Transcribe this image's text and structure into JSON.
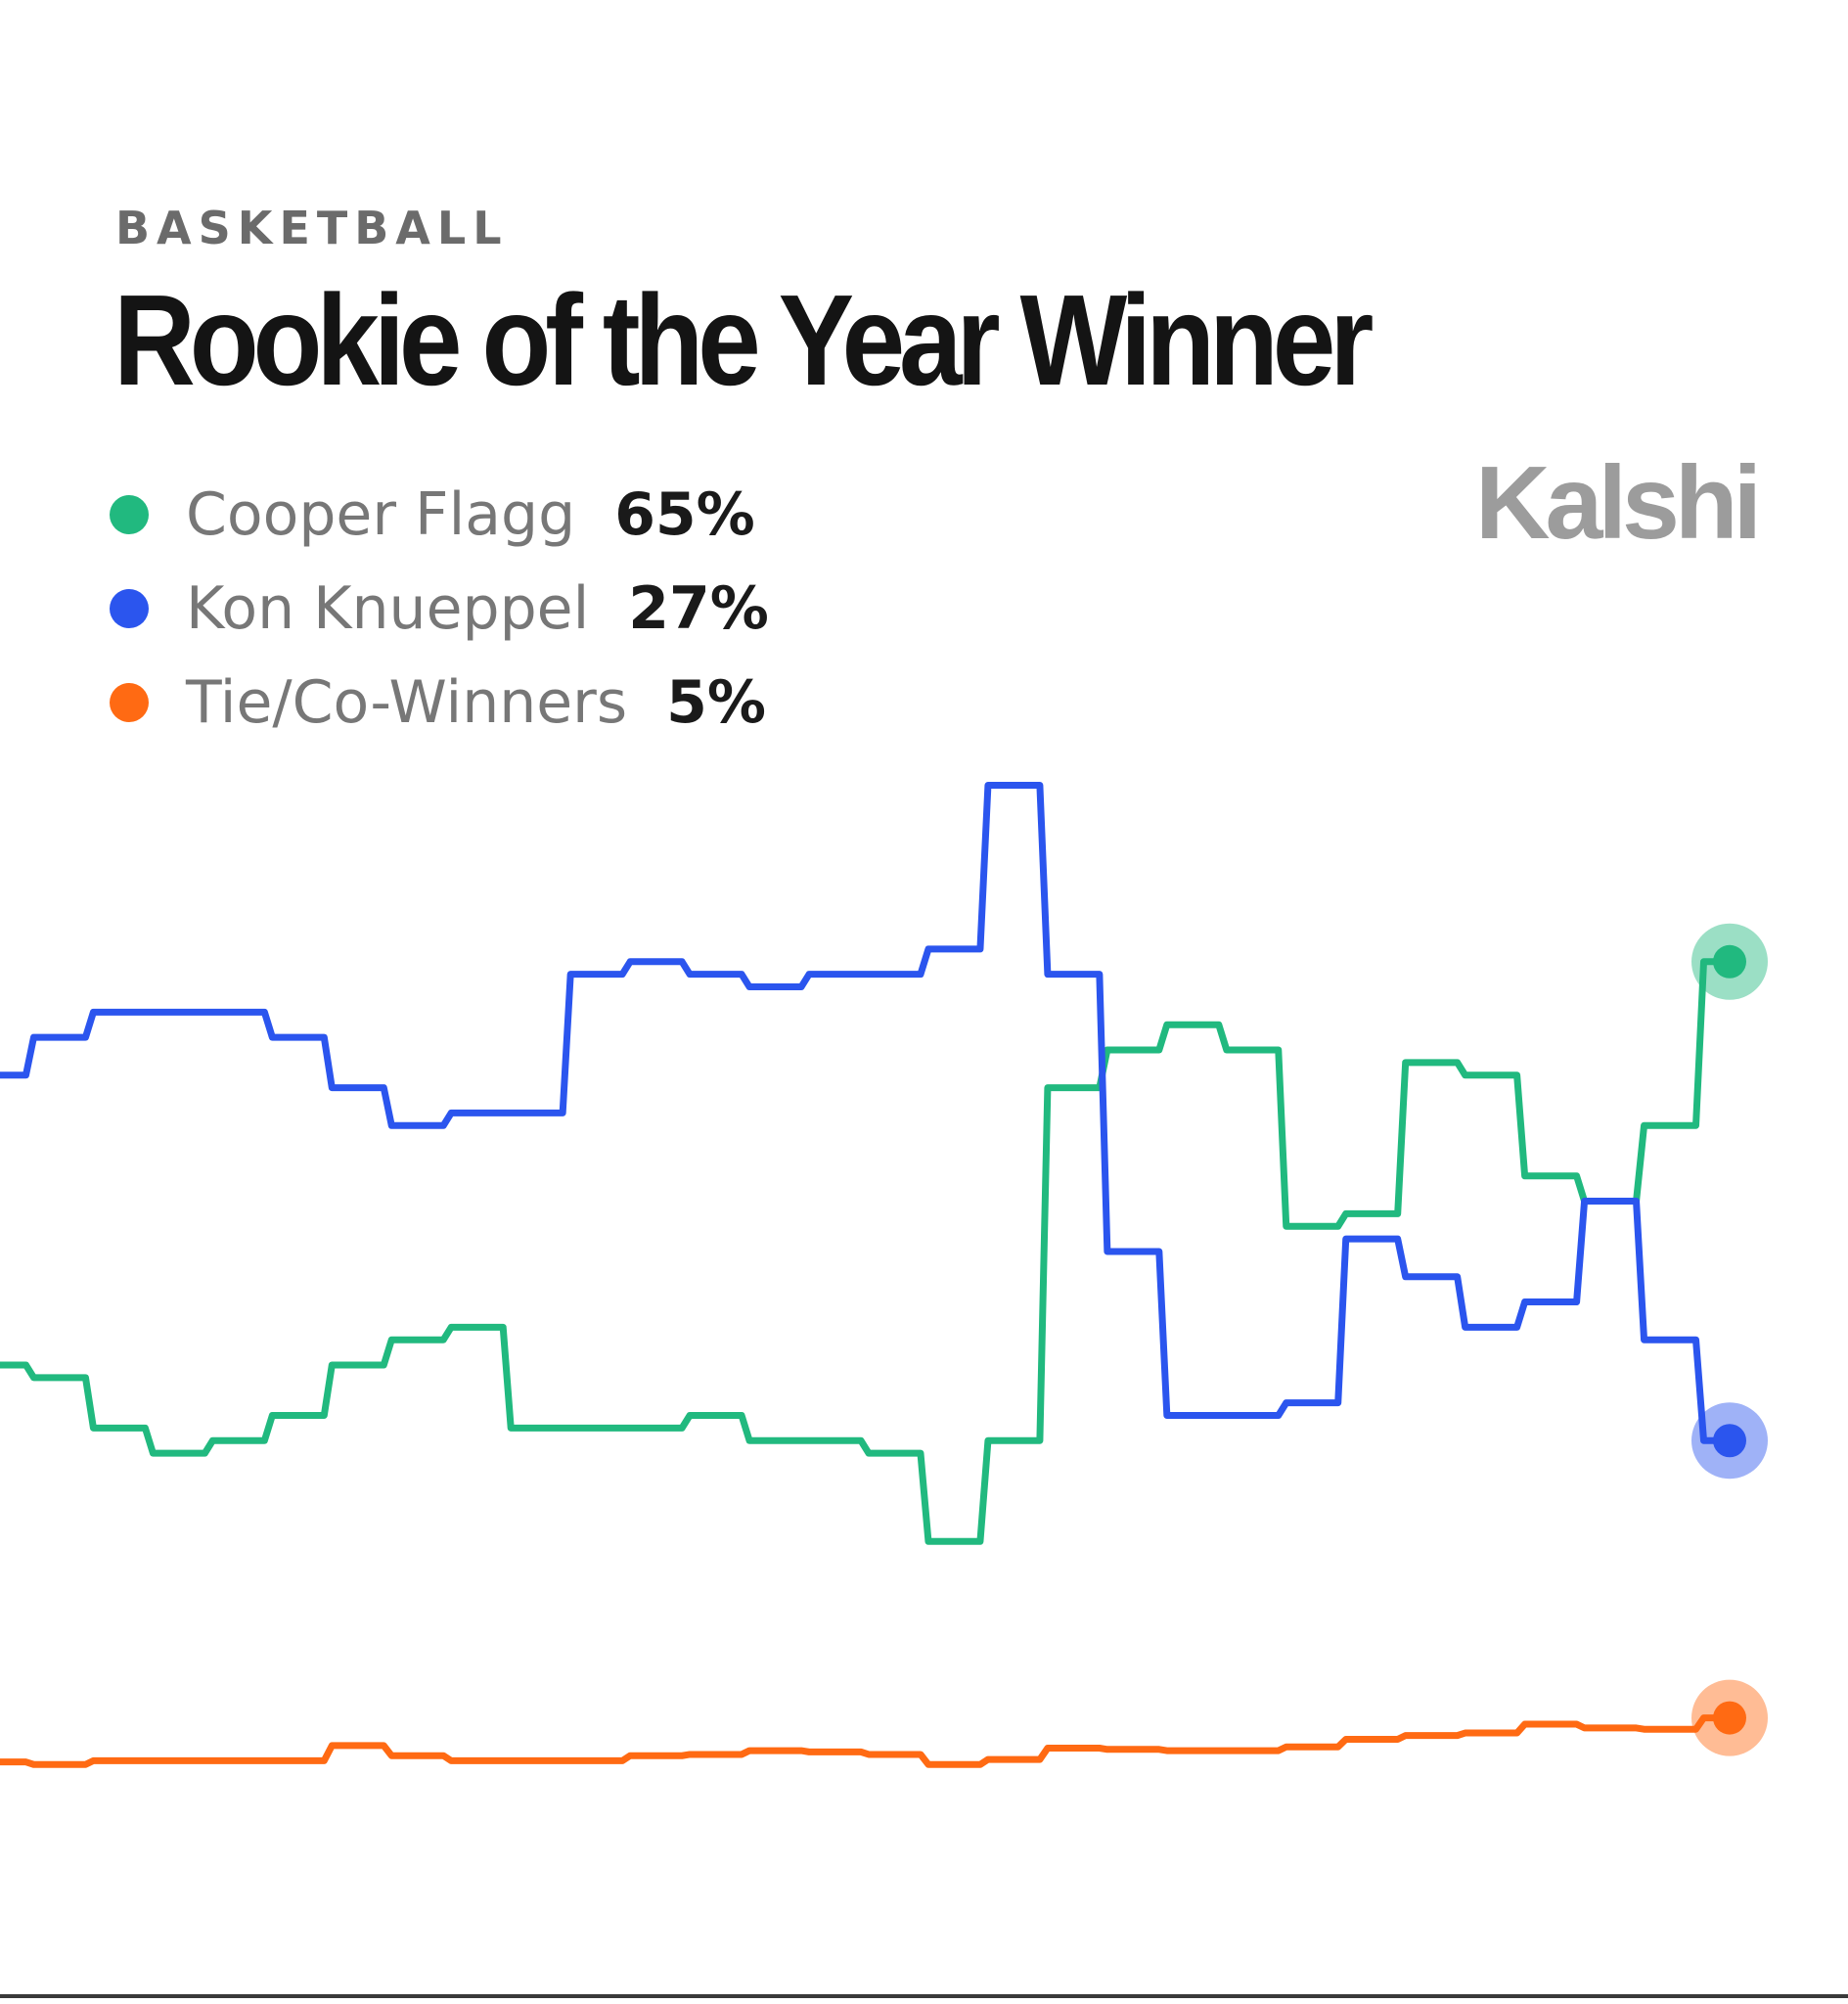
{
  "header": {
    "kicker": "BASKETBALL",
    "title": "Rookie of the Year Winner",
    "brand": "Kalshi"
  },
  "legend": [
    {
      "name": "Cooper Flagg",
      "value": "65%",
      "color": "#21b97f"
    },
    {
      "name": "Kon Knueppel",
      "value": "27%",
      "color": "#2b55ee"
    },
    {
      "name": "Tie/Co-Winners",
      "value": "5%",
      "color": "#ff6a13"
    }
  ],
  "chart_data": {
    "type": "line",
    "step": true,
    "grid": false,
    "ylim": [
      0,
      100
    ],
    "x": [
      0,
      1,
      2,
      3,
      4,
      5,
      6,
      7,
      8,
      9,
      10,
      11,
      12,
      13,
      14,
      15,
      16,
      17,
      18,
      19,
      20,
      21,
      22,
      23,
      24,
      25,
      26,
      27,
      28,
      29
    ],
    "series": [
      {
        "name": "Cooper Flagg",
        "color": "#21b97f",
        "values": [
          33,
          32,
          28,
          26,
          27,
          29,
          33,
          35,
          36,
          28,
          28,
          28,
          29,
          27,
          27,
          26,
          19,
          27,
          55,
          58,
          60,
          58,
          44,
          45,
          57,
          56,
          48,
          46,
          52,
          65
        ]
      },
      {
        "name": "Kon Knueppel",
        "color": "#2b55ee",
        "values": [
          56,
          59,
          61,
          61,
          61,
          59,
          55,
          52,
          53,
          53,
          64,
          65,
          64,
          63,
          64,
          64,
          66,
          79,
          64,
          42,
          29,
          29,
          30,
          43,
          40,
          36,
          38,
          46,
          35,
          27
        ]
      },
      {
        "name": "Tie/Co-Winners",
        "color": "#ff6a13",
        "values": [
          1.5,
          1.3,
          1.6,
          1.6,
          1.6,
          1.6,
          2.8,
          2.0,
          1.6,
          1.6,
          1.6,
          2.0,
          2.1,
          2.4,
          2.3,
          2.1,
          1.3,
          1.7,
          2.6,
          2.5,
          2.4,
          2.4,
          2.7,
          3.3,
          3.6,
          3.8,
          4.5,
          4.2,
          4.1,
          5
        ]
      }
    ]
  }
}
